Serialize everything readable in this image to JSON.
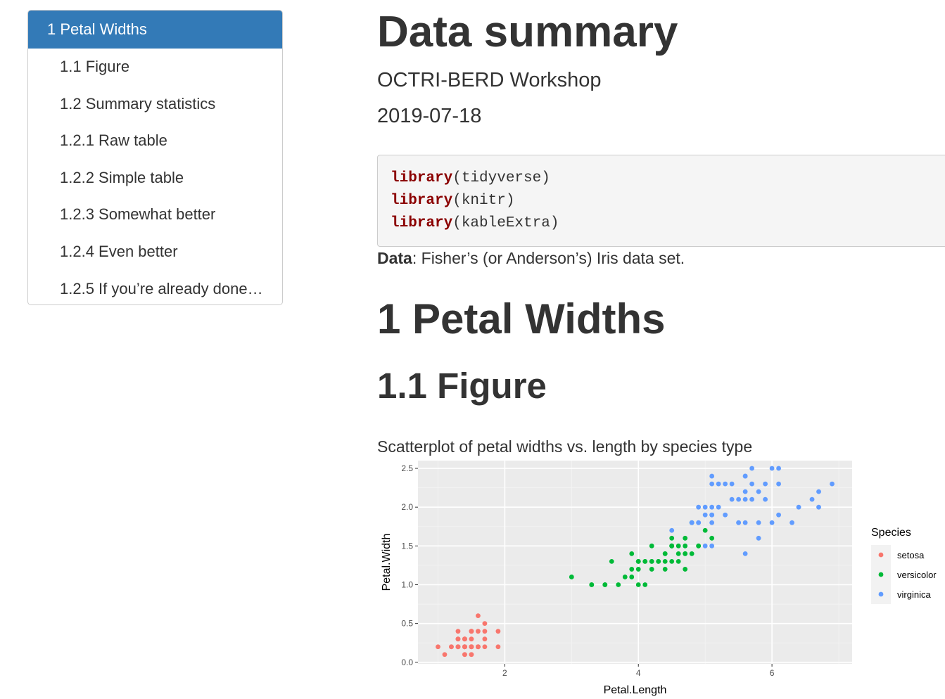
{
  "toc": {
    "items": [
      {
        "label": "1 Petal Widths",
        "level": 1,
        "active": true
      },
      {
        "label": "1.1 Figure",
        "level": 2,
        "active": false
      },
      {
        "label": "1.2 Summary statistics",
        "level": 2,
        "active": false
      },
      {
        "label": "1.2.1 Raw table",
        "level": 2,
        "active": false
      },
      {
        "label": "1.2.2 Simple table",
        "level": 2,
        "active": false
      },
      {
        "label": "1.2.3 Somewhat better",
        "level": 2,
        "active": false
      },
      {
        "label": "1.2.4 Even better",
        "level": 2,
        "active": false
      },
      {
        "label": "1.2.5 If you’re already done…",
        "level": 2,
        "active": false
      }
    ]
  },
  "header": {
    "title": "Data summary",
    "author": "OCTRI-BERD Workshop",
    "date": "2019-07-18"
  },
  "code_block": {
    "lines": [
      {
        "fn": "library",
        "arg": "(tidyverse)"
      },
      {
        "fn": "library",
        "arg": "(knitr)"
      },
      {
        "fn": "library",
        "arg": "(kableExtra)"
      }
    ]
  },
  "data_line": {
    "bold": "Data",
    "rest": ": Fisher’s (or Anderson’s) Iris data set."
  },
  "section": {
    "h1": "1 Petal Widths",
    "h2": "1.1 Figure",
    "caption": "Scatterplot of petal widths vs. length by species type"
  },
  "colors": {
    "toc_active_bg": "#337ab7",
    "code_keyword": "#8b0000",
    "panel_bg": "#ebebeb"
  },
  "chart_data": {
    "type": "scatter",
    "xlabel": "Petal.Length",
    "ylabel": "Petal.Width",
    "xlim": [
      0.7,
      7.2
    ],
    "ylim": [
      -0.02,
      2.6
    ],
    "xticks": [
      2,
      4,
      6
    ],
    "yticks": [
      "0.0",
      "0.5",
      "1.0",
      "1.5",
      "2.0",
      "2.5"
    ],
    "grid": true,
    "legend": {
      "title": "Species",
      "placement": "right"
    },
    "series": [
      {
        "name": "setosa",
        "color": "#f8766d",
        "points": [
          [
            1.4,
            0.2
          ],
          [
            1.4,
            0.2
          ],
          [
            1.3,
            0.2
          ],
          [
            1.5,
            0.2
          ],
          [
            1.4,
            0.2
          ],
          [
            1.7,
            0.4
          ],
          [
            1.4,
            0.3
          ],
          [
            1.5,
            0.2
          ],
          [
            1.4,
            0.2
          ],
          [
            1.5,
            0.1
          ],
          [
            1.5,
            0.2
          ],
          [
            1.6,
            0.2
          ],
          [
            1.4,
            0.1
          ],
          [
            1.1,
            0.1
          ],
          [
            1.2,
            0.2
          ],
          [
            1.5,
            0.4
          ],
          [
            1.3,
            0.4
          ],
          [
            1.4,
            0.3
          ],
          [
            1.7,
            0.3
          ],
          [
            1.5,
            0.3
          ],
          [
            1.7,
            0.2
          ],
          [
            1.5,
            0.4
          ],
          [
            1.0,
            0.2
          ],
          [
            1.7,
            0.5
          ],
          [
            1.9,
            0.2
          ],
          [
            1.6,
            0.2
          ],
          [
            1.6,
            0.4
          ],
          [
            1.5,
            0.2
          ],
          [
            1.4,
            0.2
          ],
          [
            1.6,
            0.2
          ],
          [
            1.6,
            0.2
          ],
          [
            1.5,
            0.4
          ],
          [
            1.5,
            0.1
          ],
          [
            1.4,
            0.2
          ],
          [
            1.5,
            0.2
          ],
          [
            1.2,
            0.2
          ],
          [
            1.3,
            0.2
          ],
          [
            1.4,
            0.1
          ],
          [
            1.3,
            0.2
          ],
          [
            1.5,
            0.2
          ],
          [
            1.3,
            0.3
          ],
          [
            1.3,
            0.3
          ],
          [
            1.3,
            0.2
          ],
          [
            1.6,
            0.6
          ],
          [
            1.9,
            0.4
          ],
          [
            1.4,
            0.3
          ],
          [
            1.6,
            0.2
          ],
          [
            1.4,
            0.2
          ],
          [
            1.5,
            0.2
          ],
          [
            1.4,
            0.2
          ]
        ]
      },
      {
        "name": "versicolor",
        "color": "#00ba38",
        "points": [
          [
            4.7,
            1.4
          ],
          [
            4.5,
            1.5
          ],
          [
            4.9,
            1.5
          ],
          [
            4.0,
            1.3
          ],
          [
            4.6,
            1.5
          ],
          [
            4.5,
            1.3
          ],
          [
            4.7,
            1.6
          ],
          [
            3.3,
            1.0
          ],
          [
            4.6,
            1.3
          ],
          [
            3.9,
            1.4
          ],
          [
            3.5,
            1.0
          ],
          [
            4.2,
            1.5
          ],
          [
            4.0,
            1.0
          ],
          [
            4.7,
            1.4
          ],
          [
            3.6,
            1.3
          ],
          [
            4.4,
            1.4
          ],
          [
            4.5,
            1.5
          ],
          [
            4.1,
            1.0
          ],
          [
            4.5,
            1.5
          ],
          [
            3.9,
            1.1
          ],
          [
            4.8,
            1.8
          ],
          [
            4.0,
            1.3
          ],
          [
            4.9,
            1.5
          ],
          [
            4.7,
            1.2
          ],
          [
            4.3,
            1.3
          ],
          [
            4.4,
            1.4
          ],
          [
            4.8,
            1.4
          ],
          [
            5.0,
            1.7
          ],
          [
            4.5,
            1.5
          ],
          [
            3.5,
            1.0
          ],
          [
            3.8,
            1.1
          ],
          [
            3.7,
            1.0
          ],
          [
            3.9,
            1.2
          ],
          [
            5.1,
            1.6
          ],
          [
            4.5,
            1.5
          ],
          [
            4.5,
            1.6
          ],
          [
            4.7,
            1.5
          ],
          [
            4.4,
            1.3
          ],
          [
            4.1,
            1.3
          ],
          [
            4.0,
            1.3
          ],
          [
            4.4,
            1.2
          ],
          [
            4.6,
            1.4
          ],
          [
            4.0,
            1.2
          ],
          [
            3.3,
            1.0
          ],
          [
            4.2,
            1.3
          ],
          [
            4.2,
            1.2
          ],
          [
            4.2,
            1.3
          ],
          [
            4.3,
            1.3
          ],
          [
            3.0,
            1.1
          ],
          [
            4.1,
            1.3
          ]
        ]
      },
      {
        "name": "virginica",
        "color": "#619cff",
        "points": [
          [
            6.0,
            2.5
          ],
          [
            5.1,
            1.9
          ],
          [
            5.9,
            2.1
          ],
          [
            5.6,
            1.8
          ],
          [
            5.8,
            2.2
          ],
          [
            6.6,
            2.1
          ],
          [
            4.5,
            1.7
          ],
          [
            6.3,
            1.8
          ],
          [
            5.8,
            1.8
          ],
          [
            6.1,
            2.5
          ],
          [
            5.1,
            2.0
          ],
          [
            5.3,
            1.9
          ],
          [
            5.5,
            2.1
          ],
          [
            5.0,
            2.0
          ],
          [
            5.1,
            2.4
          ],
          [
            5.3,
            2.3
          ],
          [
            5.5,
            1.8
          ],
          [
            6.7,
            2.2
          ],
          [
            6.9,
            2.3
          ],
          [
            5.0,
            1.5
          ],
          [
            5.7,
            2.3
          ],
          [
            4.9,
            2.0
          ],
          [
            6.7,
            2.0
          ],
          [
            4.9,
            1.8
          ],
          [
            5.7,
            2.1
          ],
          [
            6.0,
            1.8
          ],
          [
            4.8,
            1.8
          ],
          [
            4.9,
            1.8
          ],
          [
            5.6,
            2.1
          ],
          [
            5.8,
            1.6
          ],
          [
            6.1,
            1.9
          ],
          [
            6.4,
            2.0
          ],
          [
            5.6,
            2.2
          ],
          [
            5.1,
            1.5
          ],
          [
            5.6,
            1.4
          ],
          [
            6.1,
            2.3
          ],
          [
            5.6,
            2.4
          ],
          [
            5.5,
            1.8
          ],
          [
            4.8,
            1.8
          ],
          [
            5.4,
            2.1
          ],
          [
            5.6,
            2.4
          ],
          [
            5.1,
            2.3
          ],
          [
            5.1,
            1.9
          ],
          [
            5.9,
            2.3
          ],
          [
            5.7,
            2.5
          ],
          [
            5.2,
            2.3
          ],
          [
            5.0,
            1.9
          ],
          [
            5.2,
            2.0
          ],
          [
            5.4,
            2.3
          ],
          [
            5.1,
            1.8
          ]
        ]
      }
    ]
  }
}
